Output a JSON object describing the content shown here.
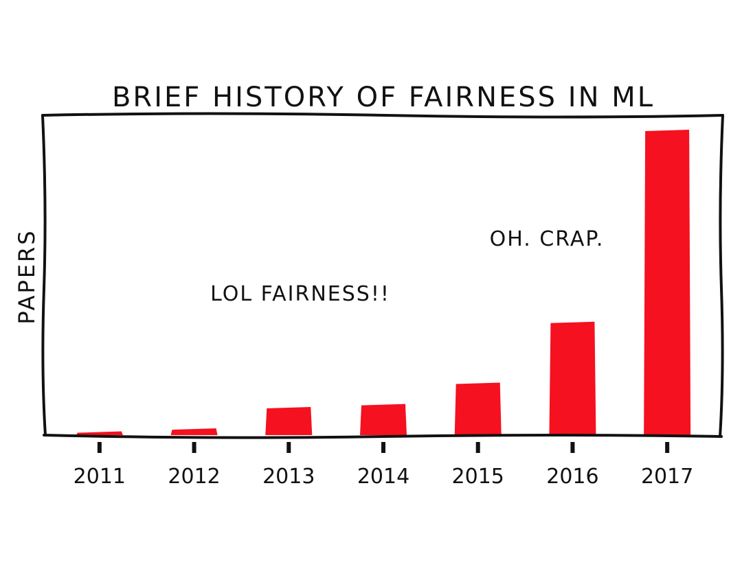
{
  "chart_data": {
    "type": "bar",
    "title": "BRIEF HISTORY OF FAIRNESS IN ML",
    "xlabel": "",
    "ylabel": "PAPERS",
    "categories": [
      "2011",
      "2012",
      "2013",
      "2014",
      "2015",
      "2016",
      "2017"
    ],
    "values": [
      1,
      2,
      9,
      10,
      17,
      37,
      100
    ],
    "ylim": [
      0,
      104
    ],
    "grid": false,
    "legend": "none",
    "bar_color": "#f5111f",
    "annotations": [
      {
        "text": "LOL FAIRNESS!!",
        "near_category": "2013"
      },
      {
        "text": "OH. CRAP.",
        "near_category": "2016"
      }
    ]
  }
}
